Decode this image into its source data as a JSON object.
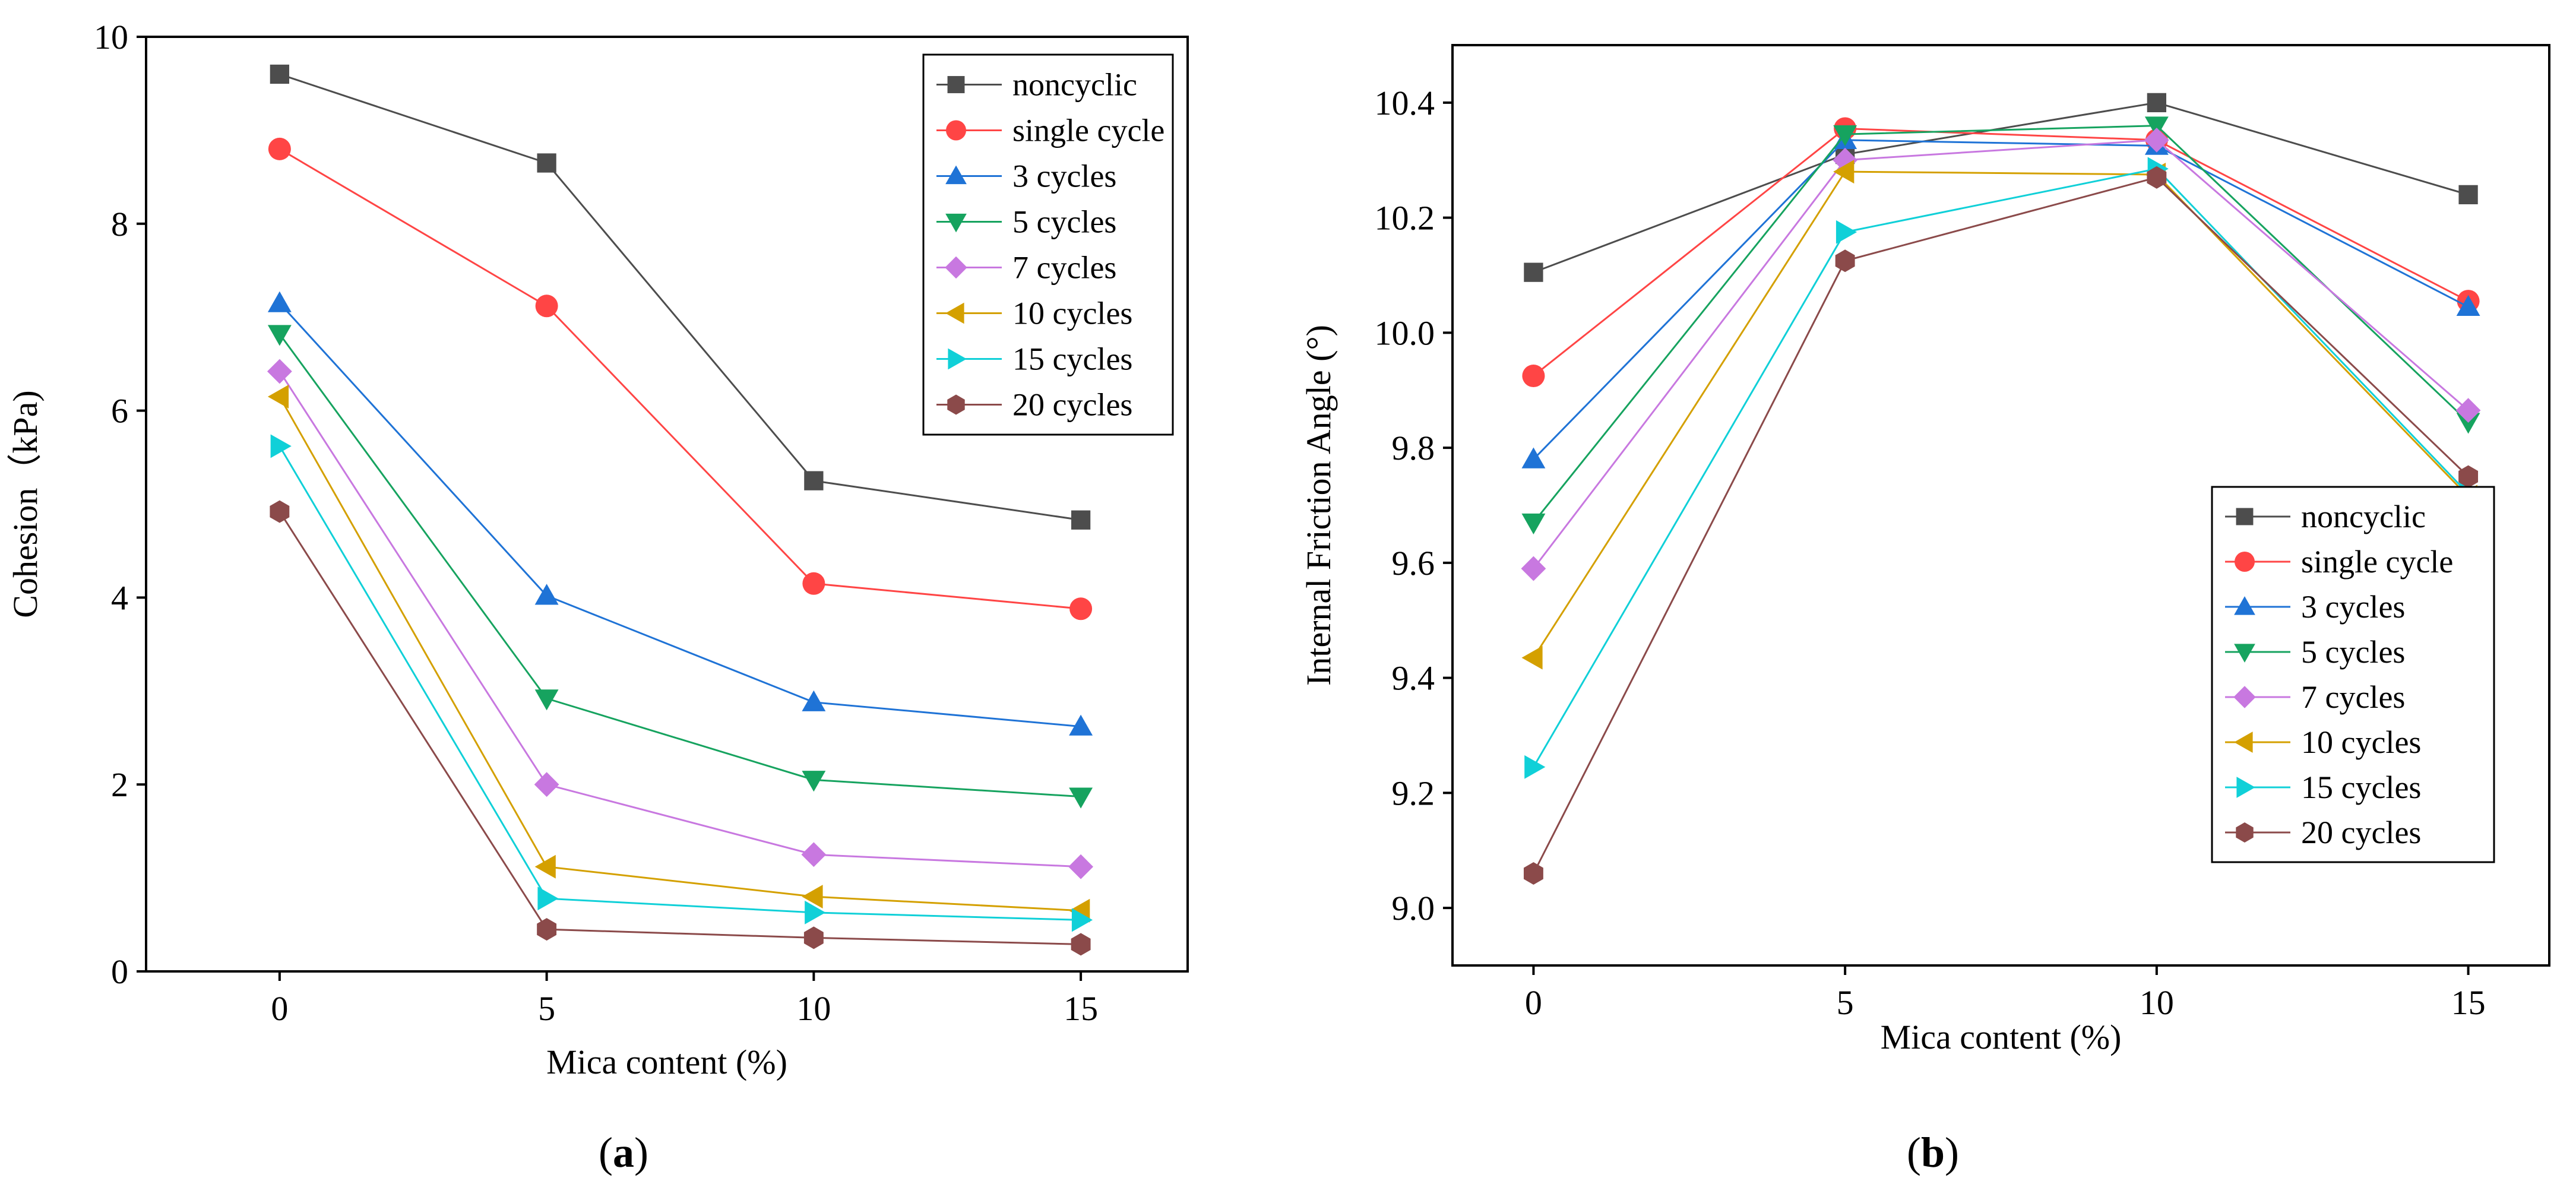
{
  "series_colors": {
    "noncyclic": "#4d4d4d",
    "single cycle": "#ff4545",
    "3 cycles": "#1f73d6",
    "5 cycles": "#16a35f",
    "7 cycles": "#c878e0",
    "10 cycles": "#d4a000",
    "15 cycles": "#10d0d8",
    "20 cycles": "#8b4a4a"
  },
  "series_markers": {
    "noncyclic": "square",
    "single cycle": "circle",
    "3 cycles": "triangle-up",
    "5 cycles": "triangle-down",
    "7 cycles": "diamond",
    "10 cycles": "triangle-left",
    "15 cycles": "triangle-right",
    "20 cycles": "hexagon"
  },
  "chart_data": [
    {
      "type": "line",
      "panel_label": "(a)",
      "panel_letter": "a",
      "xlabel": "Mica content (%)",
      "ylabel": "Cohesion（kPa)",
      "x": [
        0,
        5,
        10,
        15
      ],
      "xlim": [
        -2.5,
        17
      ],
      "ylim": [
        0,
        10
      ],
      "xticks": [
        "0",
        "5",
        "10",
        "15"
      ],
      "yticks": [
        "0",
        "2",
        "4",
        "6",
        "8",
        "10"
      ],
      "legend_position": "top-right",
      "series": [
        {
          "name": "noncyclic",
          "values": [
            9.6,
            8.65,
            5.25,
            4.83
          ]
        },
        {
          "name": "single cycle",
          "values": [
            8.8,
            7.12,
            4.15,
            3.88
          ]
        },
        {
          "name": "3 cycles",
          "values": [
            7.15,
            4.02,
            2.88,
            2.62
          ]
        },
        {
          "name": "5 cycles",
          "values": [
            6.82,
            2.92,
            2.05,
            1.87
          ]
        },
        {
          "name": "7 cycles",
          "values": [
            6.42,
            2.0,
            1.25,
            1.12
          ]
        },
        {
          "name": "10 cycles",
          "values": [
            6.15,
            1.12,
            0.8,
            0.65
          ]
        },
        {
          "name": "15 cycles",
          "values": [
            5.62,
            0.78,
            0.63,
            0.55
          ]
        },
        {
          "name": "20 cycles",
          "values": [
            4.92,
            0.45,
            0.36,
            0.29
          ]
        }
      ]
    },
    {
      "type": "line",
      "panel_label": "(b)",
      "panel_letter": "b",
      "xlabel": "Mica content (%)",
      "ylabel": "Internal Friction Angle (°)",
      "x": [
        0,
        5,
        10,
        15
      ],
      "xlim": [
        -1.3,
        16.3
      ],
      "ylim": [
        8.9,
        10.5
      ],
      "xticks": [
        "0",
        "5",
        "10",
        "15"
      ],
      "yticks": [
        "9.0",
        "9.2",
        "9.4",
        "9.6",
        "9.8",
        "10.0",
        "10.2",
        "10.4"
      ],
      "legend_position": "bottom-right",
      "series": [
        {
          "name": "noncyclic",
          "values": [
            10.105,
            10.31,
            10.4,
            10.24
          ]
        },
        {
          "name": "single cycle",
          "values": [
            9.925,
            10.355,
            10.335,
            10.055
          ]
        },
        {
          "name": "3 cycles",
          "values": [
            9.78,
            10.335,
            10.325,
            10.045
          ]
        },
        {
          "name": "5 cycles",
          "values": [
            9.67,
            10.345,
            10.36,
            9.845
          ]
        },
        {
          "name": "7 cycles",
          "values": [
            9.59,
            10.3,
            10.335,
            9.865
          ]
        },
        {
          "name": "10 cycles",
          "values": [
            9.435,
            10.28,
            10.275,
            9.715
          ]
        },
        {
          "name": "15 cycles",
          "values": [
            9.245,
            10.175,
            10.285,
            9.72
          ]
        },
        {
          "name": "20 cycles",
          "values": [
            9.06,
            10.125,
            10.27,
            9.75
          ]
        }
      ]
    }
  ]
}
